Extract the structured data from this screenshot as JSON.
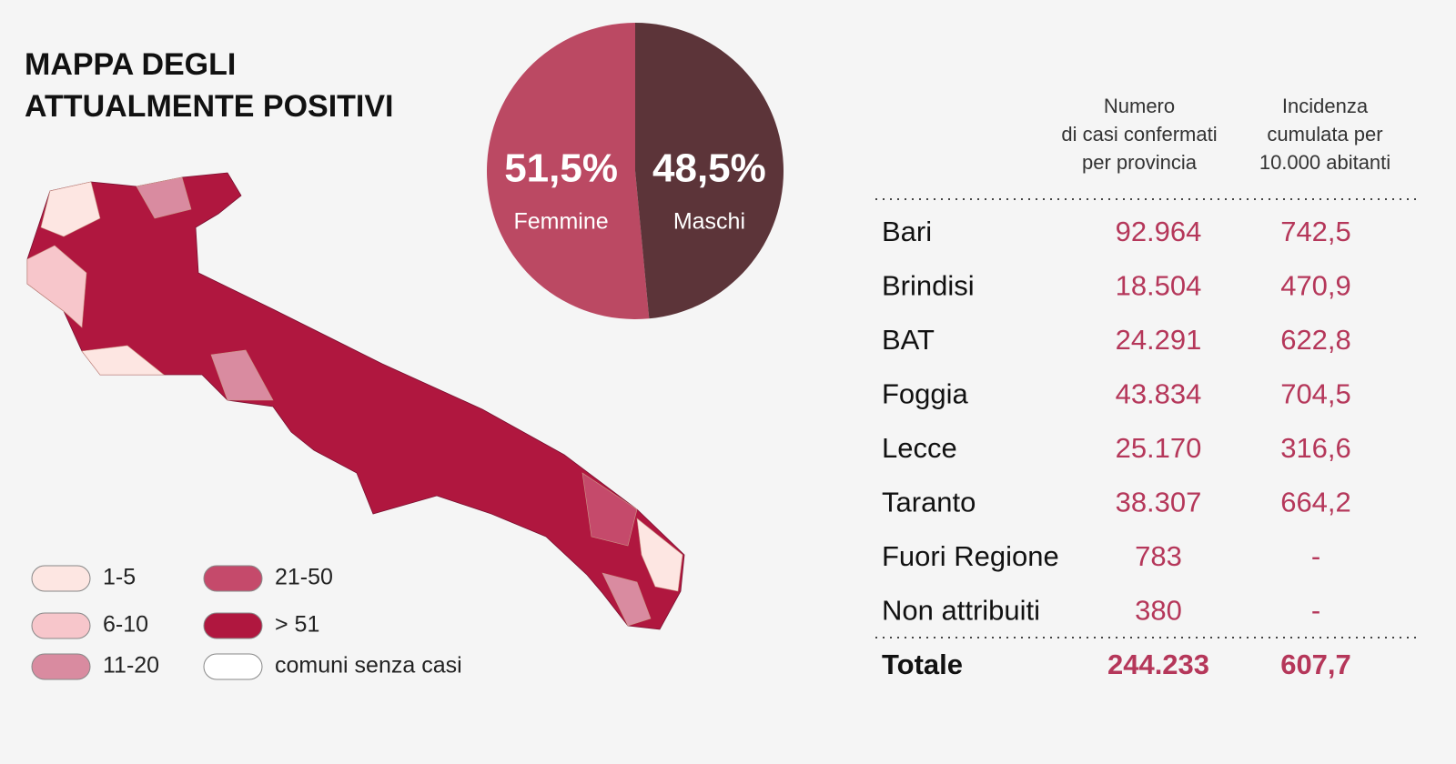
{
  "title": [
    "MAPPA DEGLI",
    "ATTUALMENTE POSITIVI"
  ],
  "map_legend": [
    {
      "label": "1-5",
      "color": "#fde6e2"
    },
    {
      "label": "6-10",
      "color": "#f7c6cb"
    },
    {
      "label": "11-20",
      "color": "#d98ba0"
    },
    {
      "label": "21-50",
      "color": "#c54a6b"
    },
    {
      "label": "> 51",
      "color": "#b0173f"
    },
    {
      "label": "comuni senza casi",
      "color": "#ffffff"
    }
  ],
  "chart_data": {
    "type": "pie",
    "categories": [
      "Femmine",
      "Maschi"
    ],
    "values": [
      51.5,
      48.5
    ],
    "value_labels": [
      "51,5%",
      "48,5%"
    ],
    "colors": [
      "#bb4963",
      "#5c3439"
    ]
  },
  "table": {
    "headers": [
      [
        "Numero",
        "di casi confermati",
        "per provincia"
      ],
      [
        "Incidenza",
        "cumulata per",
        "10.000 abitanti"
      ]
    ],
    "rows": [
      [
        "Bari",
        "92.964",
        "742,5"
      ],
      [
        "Brindisi",
        "18.504",
        "470,9"
      ],
      [
        "BAT",
        "24.291",
        "622,8"
      ],
      [
        "Foggia",
        "43.834",
        "704,5"
      ],
      [
        "Lecce",
        "25.170",
        "316,6"
      ],
      [
        "Taranto",
        "38.307",
        "664,2"
      ],
      [
        "Fuori Regione",
        "783",
        "-"
      ],
      [
        "Non attribuiti",
        "380",
        "-"
      ]
    ],
    "total": [
      "Totale",
      "244.233",
      "607,7"
    ]
  }
}
